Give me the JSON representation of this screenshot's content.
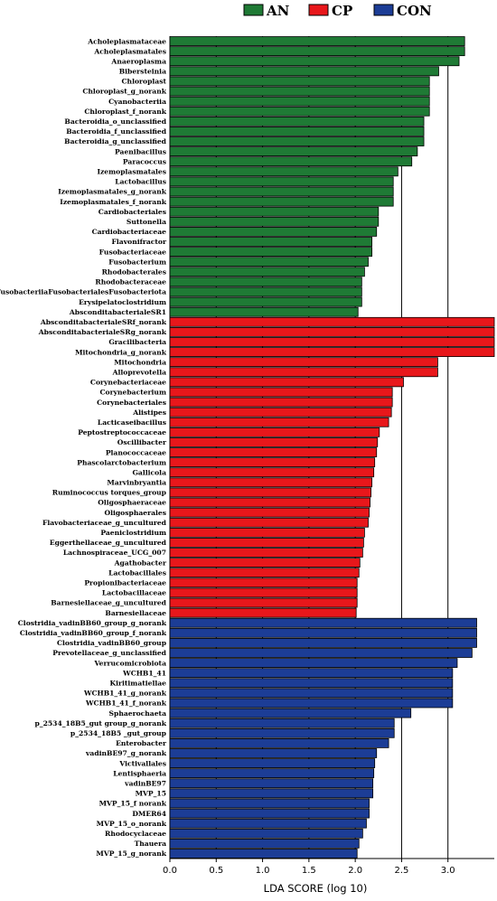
{
  "chart_data": {
    "type": "bar",
    "orientation": "horizontal",
    "xlabel": "LDA SCORE (log 10)",
    "xlim": [
      0,
      3.5
    ],
    "xticks": [
      0.0,
      0.5,
      1.0,
      1.5,
      2.0,
      2.5,
      3.0
    ],
    "xtick_labels": [
      "0.0",
      "0.5",
      "1.0",
      "1.5",
      "2.0",
      "2.5",
      "3.0"
    ],
    "grid": "vertical",
    "legend": {
      "position": "top-center"
    },
    "series": [
      {
        "name": "AN",
        "color": "#1f7a35",
        "categories": [
          "Acholeplasmataceae",
          "Acholeplasmatales",
          "Anaeroplasma",
          "Bibersteinia",
          "Chloroplast",
          "Chloroplast_g_norank",
          "Cyanobacteriia",
          "Chloroplast_f_norank",
          "Bacteroidia_o_unclassified",
          "Bacteroidia_f_unclassified",
          "Bacteroidia_g_unclassified",
          "Paenibacillus",
          "Paracoccus",
          "Izemoplasmatales",
          "Lactobacillus",
          "Izemoplasmatales_g_norank",
          "Izemoplasmatales_f_norank",
          "Cardiobacteriales",
          "Suttonella",
          "Cardiobacteriaceae",
          "Flavonifractor",
          "Fusobacteriaceae",
          "Fusobacterium",
          "Rhodobacterales",
          "Rhodobacteraceae",
          "FusobacteriiaFusobacterialesFusobacteriota",
          "Erysipelatoclostridium",
          "AbsconditabacterialeSR1"
        ],
        "values": [
          3.18,
          3.18,
          3.12,
          2.9,
          2.8,
          2.8,
          2.8,
          2.8,
          2.74,
          2.74,
          2.74,
          2.67,
          2.61,
          2.46,
          2.41,
          2.41,
          2.41,
          2.25,
          2.25,
          2.23,
          2.18,
          2.18,
          2.14,
          2.1,
          2.07,
          2.07,
          2.07,
          2.03
        ]
      },
      {
        "name": "CP",
        "color": "#e8171b",
        "categories": [
          "AbsconditabacterialeSRf_norank",
          "AbsconditabacterialeSRg_norank",
          "Gracilibacteria",
          "Mitochondria_g_norank",
          "Mitochondria",
          "Alloprevotella",
          "Corynebacteriaceae",
          "Corynebacterium",
          "Corynebacteriales",
          "Alistipes",
          "Lacticaseibacillus",
          "Peptostreptococcaceae",
          "Oscillibacter",
          "Planococcaceae",
          "Phascolarctobacterium",
          "Gallicola",
          "Marvinbryantia",
          "Ruminococcus torques_group",
          "Oligosphaeraceae",
          "Oligosphaerales",
          "Flavobacteriaceae_g_uncultured",
          "Paeniclostridium",
          "Eggerthellaceae_g_uncultured",
          "Lachnospiraceae_UCG_007",
          "Agathobacter",
          "Lactobacillales",
          "Propionibacteriaceae",
          "Lactobacillaceae",
          "Barnesiellaceae_g_uncultured",
          "Barnesiellaceae"
        ],
        "values": [
          3.5,
          3.5,
          3.5,
          3.5,
          2.89,
          2.89,
          2.52,
          2.4,
          2.4,
          2.39,
          2.36,
          2.26,
          2.24,
          2.23,
          2.21,
          2.2,
          2.18,
          2.17,
          2.16,
          2.15,
          2.14,
          2.1,
          2.09,
          2.08,
          2.05,
          2.04,
          2.02,
          2.02,
          2.02,
          2.01
        ]
      },
      {
        "name": "CON",
        "color": "#1c3d96",
        "categories": [
          "Clostridia_vadinBB60_group_g_norank",
          "Clostridia_vadinBB60_group_f_norank",
          "Clostridia_vadinBB60_group",
          "Prevotellaceae_g_unclassified",
          "Verrucomicrobiota",
          "WCHB1_41",
          "Kiritimatiellae",
          "WCHB1_41_g_norank",
          "WCHB1_41_f_norank",
          "Sphaerochaeta",
          "p_2534_18B5_gut group_g_norank",
          "p_2534_18B5 _gut_group",
          "Enterobacter",
          "vadinBE97_g_norank",
          "Victivallales",
          "Lentisphaeria",
          "vadinBE97",
          "MVP_15",
          "MVP_15_f norank",
          "DMER64",
          "MVP_15_o_norank",
          "Rhodocyclaceae",
          "Thauera",
          "MVP_15_g_norank"
        ],
        "values": [
          3.31,
          3.31,
          3.31,
          3.26,
          3.1,
          3.05,
          3.05,
          3.05,
          3.05,
          2.6,
          2.42,
          2.42,
          2.36,
          2.23,
          2.21,
          2.2,
          2.19,
          2.19,
          2.15,
          2.15,
          2.12,
          2.08,
          2.04,
          2.02
        ]
      }
    ]
  }
}
